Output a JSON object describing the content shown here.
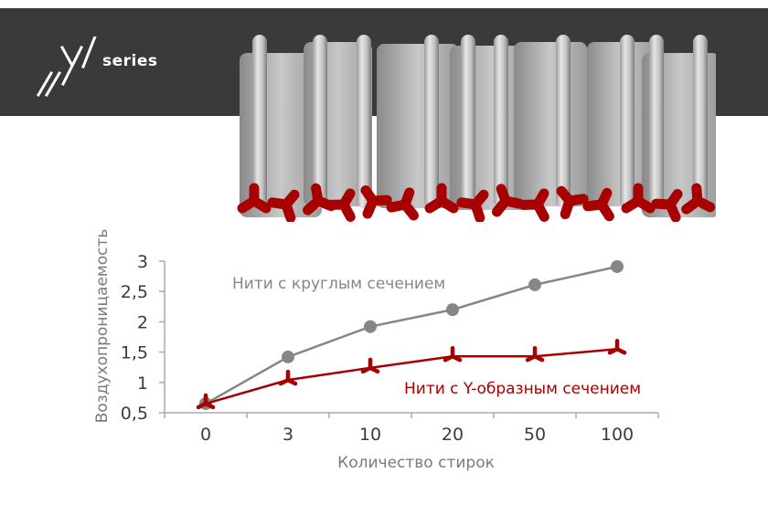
{
  "brand": {
    "logo_text": "series",
    "logo_mark": "Y"
  },
  "colors": {
    "banner": "#3a3a3a",
    "round_series": "#868686",
    "y_series": "#a80000",
    "axis": "#aaaaaa",
    "tick_label": "#3c3c3c",
    "axis_title": "#7a7a7a"
  },
  "labels": {
    "round_series": "Нити с круглым сечением",
    "y_series": "Нити с Y-образным сечением",
    "xlabel": "Количество стирок",
    "ylabel": "Воздухопроницаемость"
  },
  "chart_data": {
    "type": "line",
    "title": "",
    "xlabel": "Количество стирок",
    "ylabel": "Воздухопроницаемость",
    "categories": [
      "0",
      "3",
      "10",
      "20",
      "50",
      "100"
    ],
    "y_ticks": [
      "0,5",
      "1",
      "1,5",
      "2",
      "2,5",
      "3"
    ],
    "ylim": [
      0.5,
      3
    ],
    "grid": false,
    "legend_position": "inline labels",
    "series": [
      {
        "name": "Нити с круглым сечением",
        "marker": "circle",
        "values": [
          0.65,
          1.42,
          1.92,
          2.2,
          2.61,
          2.91
        ]
      },
      {
        "name": "Нити с Y-образным сечением",
        "marker": "Y-shape",
        "values": [
          0.65,
          1.04,
          1.24,
          1.43,
          1.43,
          1.55
        ]
      }
    ]
  }
}
